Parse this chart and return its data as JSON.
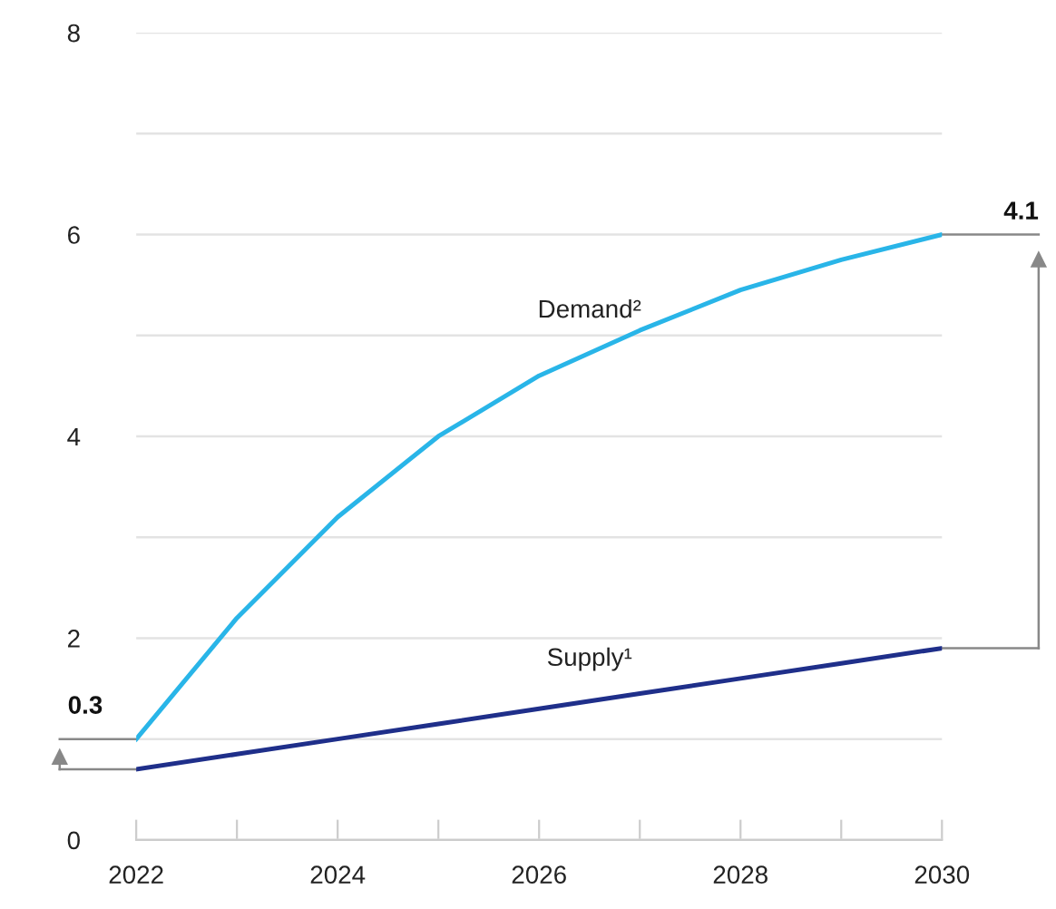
{
  "chart_data": {
    "type": "line",
    "x": [
      2022,
      2023,
      2024,
      2025,
      2026,
      2027,
      2028,
      2029,
      2030
    ],
    "series": [
      {
        "name": "Demand²",
        "color": "#29b5e8",
        "values": [
          1.0,
          2.2,
          3.2,
          4.0,
          4.6,
          5.05,
          5.45,
          5.75,
          6.0
        ]
      },
      {
        "name": "Supply¹",
        "color": "#1f2f8a",
        "values": [
          0.7,
          0.85,
          1.0,
          1.15,
          1.3,
          1.45,
          1.6,
          1.75,
          1.9
        ]
      }
    ],
    "xlim": [
      2022,
      2030
    ],
    "xticks": [
      2022,
      {
        "value": 2023,
        "label": null
      },
      2024,
      {
        "value": 2025,
        "label": null
      },
      2026,
      {
        "value": 2027,
        "label": null
      },
      2028,
      {
        "value": 2029,
        "label": null
      },
      2030
    ],
    "ylim": [
      0,
      8
    ],
    "yticks": [
      0,
      {
        "value": 1,
        "label": null
      },
      2,
      {
        "value": 3,
        "label": null
      },
      4,
      {
        "value": 5,
        "label": null
      },
      6,
      {
        "value": 7,
        "label": null
      },
      8
    ],
    "grid": "y",
    "legend": false,
    "marker": "none",
    "line_style": "solid",
    "annotations": [
      {
        "text": "0.3",
        "x": 2022,
        "y": 1.0
      },
      {
        "text": "4.1",
        "x": 2030,
        "y": 6.0
      }
    ]
  }
}
